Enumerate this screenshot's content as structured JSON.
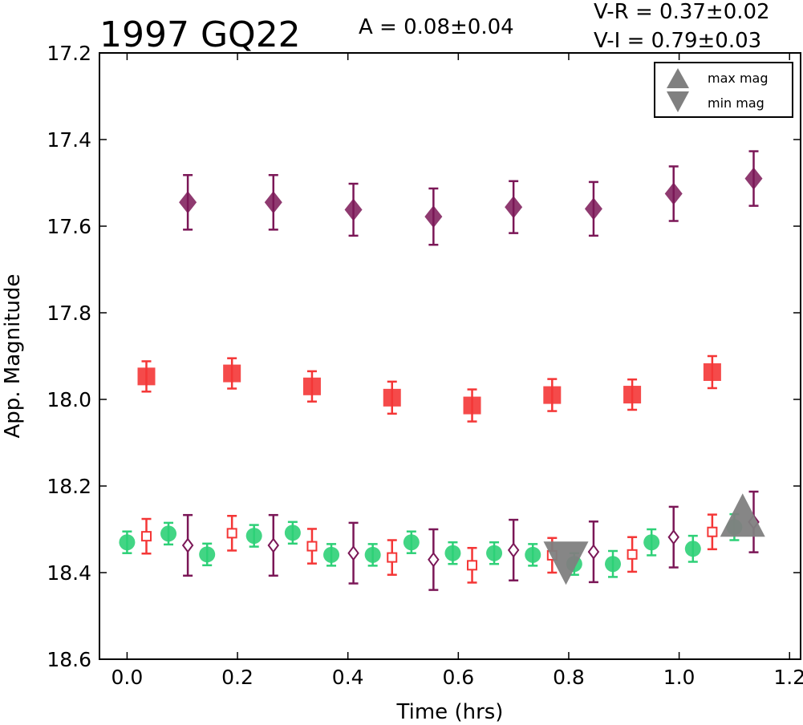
{
  "chart_data": {
    "type": "scatter",
    "title": "1997 GQ22",
    "annotations": {
      "amplitude": "A  = 0.08±0.04",
      "vr": "V-R = 0.37±0.02",
      "vi": "V-I  = 0.79±0.03"
    },
    "xlabel": "Time (hrs)",
    "ylabel": "App. Magnitude",
    "xlim": [
      -0.05,
      1.22
    ],
    "ylim": [
      18.6,
      17.2
    ],
    "y_inverted": true,
    "x_ticks": [
      "0.0",
      "0.2",
      "0.4",
      "0.6",
      "0.8",
      "1.0",
      "1.2"
    ],
    "y_ticks": [
      "17.2",
      "17.4",
      "17.6",
      "17.8",
      "18.0",
      "18.2",
      "18.4",
      "18.6"
    ],
    "grid": false,
    "legend": {
      "placement": "top-right",
      "entries": [
        {
          "label": "max mag",
          "marker": "triangle-up",
          "color": "#808080"
        },
        {
          "label": "min mag",
          "marker": "triangle-down",
          "color": "#808080"
        }
      ]
    },
    "colors": {
      "purple": "#7b1757",
      "red": "#f43636",
      "green": "#2ed077",
      "gray": "#808080"
    },
    "series": [
      {
        "marker": "diamond",
        "color": "#7b1757",
        "x": [
          0.11,
          0.265,
          0.41,
          0.555,
          0.7,
          0.845,
          0.99,
          1.135
        ],
        "y": [
          17.545,
          17.545,
          17.562,
          17.578,
          17.556,
          17.56,
          17.525,
          17.49
        ],
        "err": [
          0.063,
          0.063,
          0.06,
          0.065,
          0.06,
          0.062,
          0.063,
          0.063
        ]
      },
      {
        "marker": "square",
        "color": "#f43636",
        "x": [
          0.035,
          0.19,
          0.335,
          0.48,
          0.625,
          0.77,
          0.915,
          1.06
        ],
        "y": [
          17.947,
          17.94,
          17.97,
          17.996,
          18.014,
          17.99,
          17.989,
          17.937
        ],
        "err": [
          0.035,
          0.035,
          0.035,
          0.037,
          0.037,
          0.037,
          0.035,
          0.037
        ]
      },
      {
        "marker": "circle",
        "color": "#2ed077",
        "x": [
          0.0,
          0.075,
          0.145,
          0.23,
          0.3,
          0.37,
          0.445,
          0.515,
          0.59,
          0.665,
          0.735,
          0.81,
          0.88,
          0.95,
          1.025,
          1.1
        ],
        "y": [
          18.33,
          18.31,
          18.358,
          18.315,
          18.308,
          18.359,
          18.359,
          18.33,
          18.355,
          18.355,
          18.359,
          18.38,
          18.38,
          18.33,
          18.345,
          18.295
        ],
        "err": [
          0.025,
          0.025,
          0.025,
          0.025,
          0.025,
          0.025,
          0.025,
          0.025,
          0.025,
          0.025,
          0.025,
          0.025,
          0.03,
          0.03,
          0.03,
          0.03
        ]
      },
      {
        "marker": "square-open",
        "color": "#f43636",
        "x": [
          0.035,
          0.19,
          0.335,
          0.48,
          0.625,
          0.77,
          0.915,
          1.06
        ],
        "y": [
          18.316,
          18.309,
          18.339,
          18.365,
          18.383,
          18.36,
          18.358,
          18.306
        ],
        "err": [
          0.04,
          0.04,
          0.04,
          0.04,
          0.04,
          0.04,
          0.04,
          0.04
        ]
      },
      {
        "marker": "diamond-open",
        "color": "#7b1757",
        "x": [
          0.11,
          0.265,
          0.41,
          0.555,
          0.7,
          0.845,
          0.99,
          1.135
        ],
        "y": [
          18.337,
          18.337,
          18.355,
          18.37,
          18.348,
          18.352,
          18.318,
          18.283
        ],
        "err": [
          0.07,
          0.07,
          0.07,
          0.07,
          0.07,
          0.07,
          0.07,
          0.07
        ]
      }
    ],
    "extrema": [
      {
        "label": "min mag",
        "marker": "triangle-down",
        "x": 0.795,
        "y": 18.38
      },
      {
        "label": "max mag",
        "marker": "triangle-up",
        "x": 1.115,
        "y": 18.295
      }
    ]
  }
}
